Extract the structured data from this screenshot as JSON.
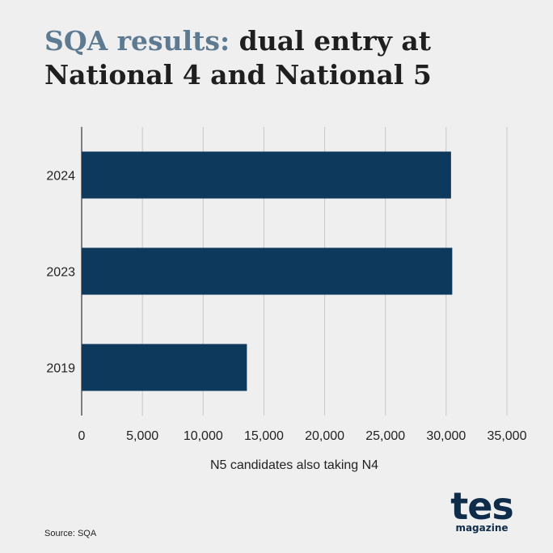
{
  "title": {
    "accent": "SQA results:",
    "rest": " dual entry at National 4 and National 5"
  },
  "source": "Source: SQA",
  "logo": {
    "word": "tes",
    "sub": "magazine"
  },
  "colors": {
    "bar": "#0d3a5c",
    "title_accent": "#5d7a93",
    "background": "#efefef",
    "grid": "#c8c8c8"
  },
  "chart_data": {
    "type": "bar",
    "orientation": "horizontal",
    "categories": [
      "2024",
      "2023",
      "2019"
    ],
    "values": [
      30400,
      30500,
      13600
    ],
    "xlabel": "N5 candidates also taking N4",
    "ylabel": "",
    "xlim": [
      0,
      35000
    ],
    "xticks": [
      0,
      5000,
      10000,
      15000,
      20000,
      25000,
      30000,
      35000
    ],
    "xtick_labels": [
      "0",
      "5,000",
      "10,000",
      "15,000",
      "20,000",
      "25,000",
      "30,000",
      "35,000"
    ],
    "grid": true
  }
}
